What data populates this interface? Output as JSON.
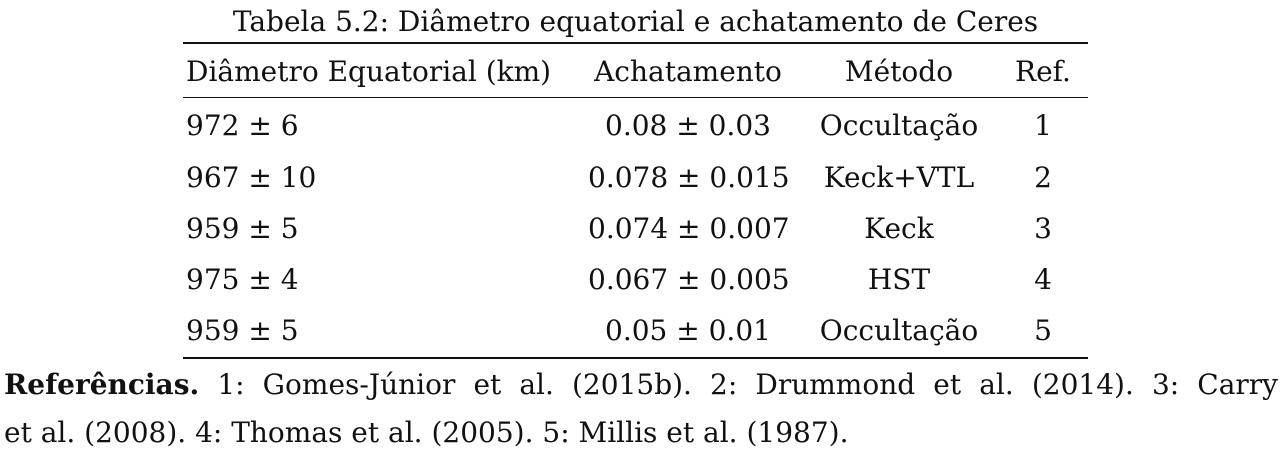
{
  "caption": "Tabela 5.2: Diâmetro equatorial e achatamento de Ceres",
  "table": {
    "headers": [
      "Diâmetro Equatorial (km)",
      "Achatamento",
      "Método",
      "Ref."
    ],
    "rows": [
      [
        "972 ± 6",
        "0.08 ± 0.03",
        "Occultação",
        "1"
      ],
      [
        "967 ± 10",
        "0.078 ± 0.015",
        "Keck+VTL",
        "2"
      ],
      [
        "959 ± 5",
        "0.074 ± 0.007",
        "Keck",
        "3"
      ],
      [
        "975 ± 4",
        "0.067 ± 0.005",
        "HST",
        "4"
      ],
      [
        "959 ± 5",
        "0.05 ± 0.01",
        "Occultação",
        "5"
      ]
    ]
  },
  "references": {
    "label": "Referências.",
    "line1": "1: Gomes-Júnior et al. (2015b). 2: Drummond et al. (2014). 3: Carry",
    "line2": "et al. (2008). 4: Thomas et al. (2005). 5: Millis et al. (1987)."
  }
}
